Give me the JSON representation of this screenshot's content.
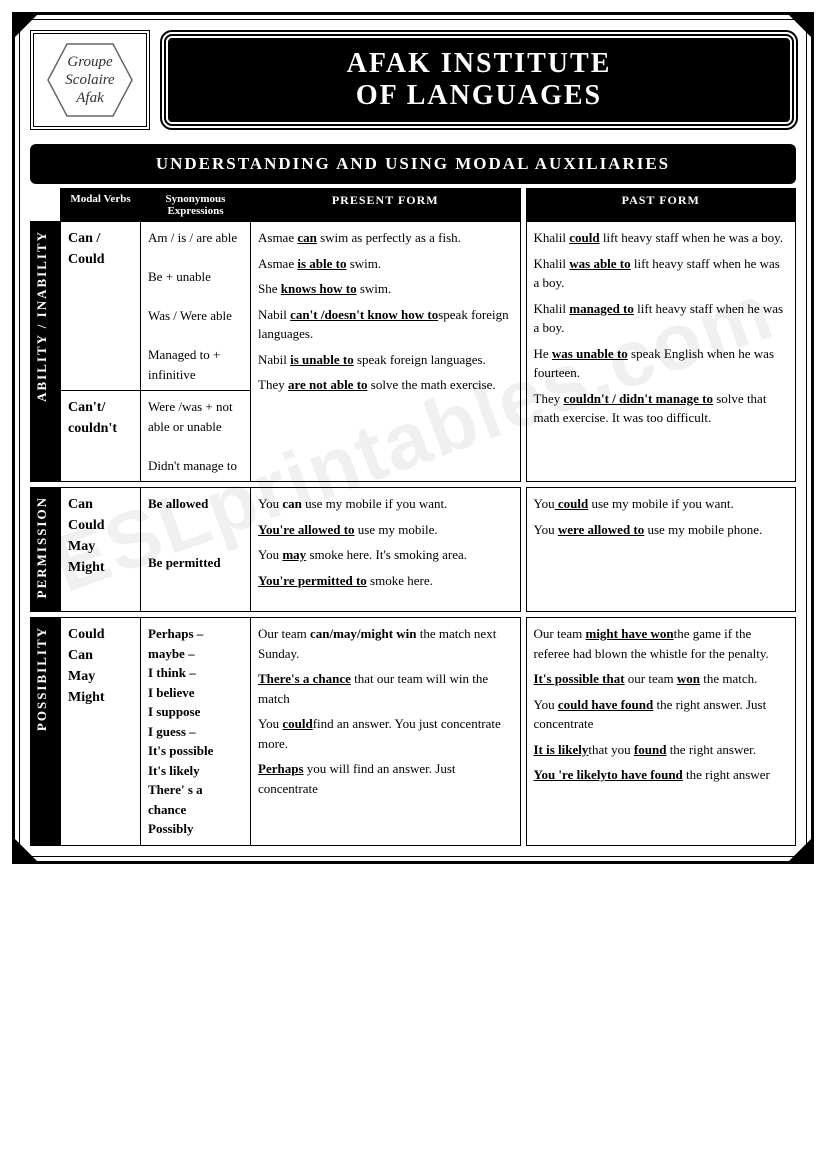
{
  "watermark": "ESLprintables.com",
  "logo": {
    "l1": "Groupe",
    "l2": "Scolaire",
    "l3": "Afak"
  },
  "title_l1": "AFAK INSTITUTE",
  "title_l2": "OF LANGUAGES",
  "subtitle": "UNDERSTANDING AND USING MODAL AUXILIARIES",
  "headers": {
    "modal": "Modal Verbs",
    "syn": "Synonymous Expressions",
    "present": "PRESENT FORM",
    "past": "PAST FORM"
  },
  "sections": [
    {
      "cat": "ABILITY / INABILITY",
      "modalA": "Can / Could",
      "modalB": "Can't/ couldn't",
      "synA": "Am / is / are able\n\nBe + unable\n\nWas / Were able\n\nManaged to + infinitive",
      "synB": "Were /was + not able or unable\n\nDidn't manage to",
      "present": [
        {
          "pre": "Asmae ",
          "k": "can",
          "post": " swim as perfectly as a fish."
        },
        {
          "pre": "Asmae ",
          "k": "is able to",
          "post": " swim."
        },
        {
          "pre": "She ",
          "k": "knows how to",
          "post": " swim."
        },
        {
          "pre": "Nabil ",
          "k": "can't /doesn't know how to",
          "post": "speak foreign languages."
        },
        {
          "pre": "Nabil ",
          "k": "is unable to",
          "post": " speak foreign languages."
        },
        {
          "pre": "They ",
          "k": "are not able to",
          "post": " solve the math exercise."
        }
      ],
      "past": [
        {
          "pre": "Khalil ",
          "k": "could",
          "post": " lift heavy staff when he was a boy."
        },
        {
          "pre": "Khalil ",
          "k": "was able to",
          "post": " lift heavy staff when he was a boy."
        },
        {
          "pre": "Khalil ",
          "k": "managed to",
          "post": " lift heavy staff when he was a boy."
        },
        {
          "pre": "He ",
          "k": "was unable to",
          "post": " speak English when he was fourteen."
        },
        {
          "pre": "They ",
          "k": "couldn't / didn't manage to",
          "post": " solve that math exercise. It was too difficult."
        }
      ]
    },
    {
      "cat": "PERMISSION",
      "modal": "Can\nCould\nMay\nMight",
      "syn": "Be allowed\n\n\nBe permitted",
      "present": [
        {
          "pre": "You ",
          "k": "can",
          "post": " use my mobile if you want.",
          "kb": true
        },
        {
          "pre": "",
          "k": "You're allowed to",
          "post": " use my mobile."
        },
        {
          "pre": "You ",
          "k": "may",
          "post": " smoke here. It's smoking area."
        },
        {
          "pre": "",
          "k": "You're permitted to",
          "post": " smoke here."
        }
      ],
      "past": [
        {
          "pre": "You",
          "k": " could",
          "post": " use my mobile if you want."
        },
        {
          "pre": "You ",
          "k": "were allowed to",
          "post": " use my mobile phone."
        }
      ]
    },
    {
      "cat": "POSSIBILITY",
      "modal": "Could\nCan\nMay\nMight",
      "syn": "Perhaps –\nmaybe –\nI think –\nI believe\nI suppose\nI guess –\nIt's possible\nIt's likely\nThere' s a chance\nPossibly",
      "present": [
        {
          "pre": "Our team ",
          "k": "can/may/might win",
          "post": " the match next Sunday.",
          "kb": true
        },
        {
          "pre": "",
          "k": "There's a chance",
          "post": " that our team will win the match"
        },
        {
          "pre": "You ",
          "k": "could",
          "post": "find an answer. You just concentrate more."
        },
        {
          "pre": "",
          "k": "Perhaps",
          "post": " you will find an answer. Just concentrate"
        }
      ],
      "past": [
        {
          "pre": "Our team ",
          "k": "might have won",
          "post": "the game if the referee had blown the whistle for the penalty."
        },
        {
          "pre": "",
          "k": "It's possible that",
          "post": " our team ",
          "k2": "won",
          "post2": " the match."
        },
        {
          "pre": "You ",
          "k": "could have found",
          "post": " the right answer. Just concentrate"
        },
        {
          "pre": "",
          "k": "It is likely",
          "post": "that you ",
          "k2": "found",
          "post2": " the right answer."
        },
        {
          "pre": "",
          "k": "You 're likely",
          "post": "",
          "k2": "to have found",
          "post2": " the right answer"
        }
      ]
    }
  ]
}
